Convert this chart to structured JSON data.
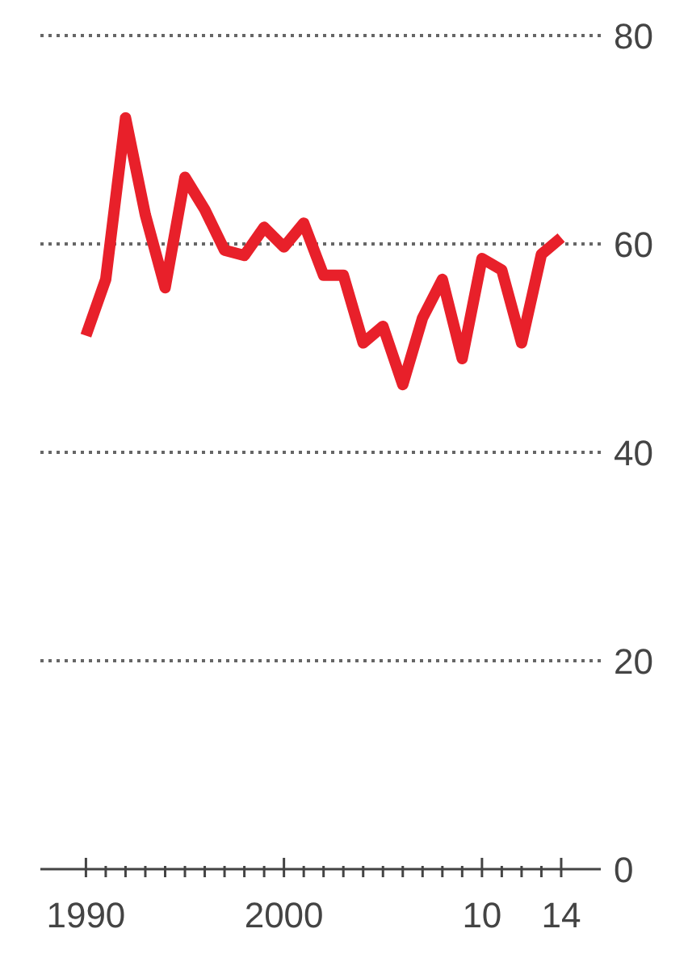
{
  "chart_data": {
    "type": "line",
    "x": [
      1990,
      1991,
      1992,
      1993,
      1994,
      1995,
      1996,
      1997,
      1998,
      1999,
      2000,
      2001,
      2002,
      2003,
      2004,
      2005,
      2006,
      2007,
      2008,
      2009,
      2010,
      2011,
      2012,
      2013,
      2014
    ],
    "series": [
      {
        "color": "#e8202a",
        "values": [
          51.2,
          56.6,
          72.1,
          62.8,
          55.8,
          66.4,
          63.3,
          59.4,
          58.9,
          61.6,
          59.7,
          62,
          57,
          57,
          50.5,
          52.1,
          46.5,
          52.9,
          56.6,
          49,
          58.6,
          57.5,
          50.5,
          59,
          60.6
        ]
      }
    ],
    "xlim": [
      1987.7,
      2016
    ],
    "xticks": [
      1990,
      {
        "value": 1991,
        "label": null
      },
      {
        "value": 1992,
        "label": null
      },
      {
        "value": 1993,
        "label": null
      },
      {
        "value": 1994,
        "label": null
      },
      {
        "value": 1995,
        "label": null
      },
      {
        "value": 1996,
        "label": null
      },
      {
        "value": 1997,
        "label": null
      },
      {
        "value": 1998,
        "label": null
      },
      {
        "value": 1999,
        "label": null
      },
      2000,
      {
        "value": 2001,
        "label": null
      },
      {
        "value": 2002,
        "label": null
      },
      {
        "value": 2003,
        "label": null
      },
      {
        "value": 2004,
        "label": null
      },
      {
        "value": 2005,
        "label": null
      },
      {
        "value": 2006,
        "label": null
      },
      {
        "value": 2007,
        "label": null
      },
      {
        "value": 2008,
        "label": null
      },
      {
        "value": 2009,
        "label": null
      },
      {
        "value": 2010,
        "label": "10"
      },
      {
        "value": 2011,
        "label": null
      },
      {
        "value": 2012,
        "label": null
      },
      {
        "value": 2013,
        "label": null
      },
      {
        "value": 2014,
        "label": "14"
      }
    ],
    "ylim": [
      0,
      80
    ],
    "yticks": [
      0,
      20,
      40,
      60,
      80
    ],
    "grid": "y",
    "marker": "none",
    "line_style": "solid",
    "legend": false
  }
}
